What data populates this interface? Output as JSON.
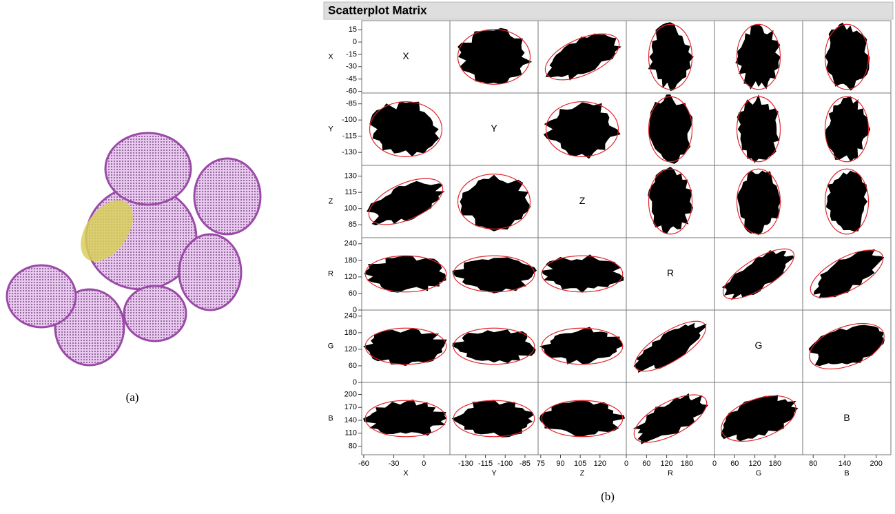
{
  "panel_a": {
    "caption": "(a)"
  },
  "panel_b": {
    "caption": "(b)",
    "title": "Scatterplot Matrix",
    "variables": [
      {
        "name": "X",
        "lim": [
          -62,
          26
        ],
        "row_ticks": [
          15,
          0,
          -15,
          -30,
          -45,
          -60
        ],
        "col_ticks": [
          -60,
          -30,
          0
        ]
      },
      {
        "name": "Y",
        "lim": [
          -142,
          -75
        ],
        "row_ticks": [
          -85,
          -100,
          -115,
          -130
        ],
        "col_ticks": [
          -130,
          -115,
          -100,
          -85
        ]
      },
      {
        "name": "Z",
        "lim": [
          73,
          140
        ],
        "row_ticks": [
          130,
          115,
          100,
          85
        ],
        "col_ticks": [
          75,
          90,
          105,
          120
        ]
      },
      {
        "name": "R",
        "lim": [
          0,
          262
        ],
        "row_ticks": [
          240,
          180,
          120,
          60,
          0
        ],
        "col_ticks": [
          0,
          60,
          120,
          180
        ]
      },
      {
        "name": "G",
        "lim": [
          0,
          262
        ],
        "row_ticks": [
          240,
          180,
          120,
          60,
          0
        ],
        "col_ticks": [
          0,
          60,
          120,
          180
        ]
      },
      {
        "name": "B",
        "lim": [
          60,
          228
        ],
        "row_ticks": [
          200,
          170,
          140,
          110,
          80
        ],
        "col_ticks": [
          80,
          140,
          200
        ]
      }
    ]
  }
}
